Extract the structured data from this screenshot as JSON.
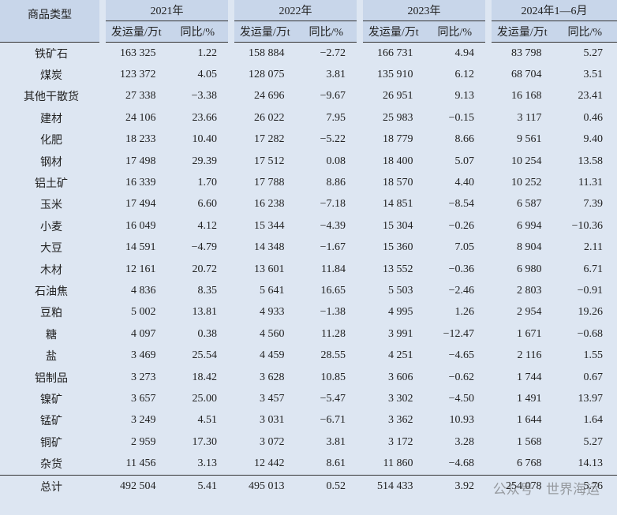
{
  "table": {
    "header": {
      "name": "商品类型",
      "years": [
        "2021年",
        "2022年",
        "2023年",
        "2024年1—6月"
      ],
      "sub": [
        "发运量/万t",
        "同比/%"
      ]
    },
    "rows": [
      [
        "铁矿石",
        "163 325",
        "1.22",
        "158 884",
        "−2.72",
        "166 731",
        "4.94",
        "83 798",
        "5.27"
      ],
      [
        "煤炭",
        "123 372",
        "4.05",
        "128 075",
        "3.81",
        "135 910",
        "6.12",
        "68 704",
        "3.51"
      ],
      [
        "其他干散货",
        "27 338",
        "−3.38",
        "24 696",
        "−9.67",
        "26 951",
        "9.13",
        "16 168",
        "23.41"
      ],
      [
        "建材",
        "24 106",
        "23.66",
        "26 022",
        "7.95",
        "25 983",
        "−0.15",
        "3 117",
        "0.46"
      ],
      [
        "化肥",
        "18 233",
        "10.40",
        "17 282",
        "−5.22",
        "18 779",
        "8.66",
        "9 561",
        "9.40"
      ],
      [
        "钢材",
        "17 498",
        "29.39",
        "17 512",
        "0.08",
        "18 400",
        "5.07",
        "10 254",
        "13.58"
      ],
      [
        "铝土矿",
        "16 339",
        "1.70",
        "17 788",
        "8.86",
        "18 570",
        "4.40",
        "10 252",
        "11.31"
      ],
      [
        "玉米",
        "17 494",
        "6.60",
        "16 238",
        "−7.18",
        "14 851",
        "−8.54",
        "6 587",
        "7.39"
      ],
      [
        "小麦",
        "16 049",
        "4.12",
        "15 344",
        "−4.39",
        "15 304",
        "−0.26",
        "6 994",
        "−10.36"
      ],
      [
        "大豆",
        "14 591",
        "−4.79",
        "14 348",
        "−1.67",
        "15 360",
        "7.05",
        "8 904",
        "2.11"
      ],
      [
        "木材",
        "12 161",
        "20.72",
        "13 601",
        "11.84",
        "13 552",
        "−0.36",
        "6 980",
        "6.71"
      ],
      [
        "石油焦",
        "4 836",
        "8.35",
        "5 641",
        "16.65",
        "5 503",
        "−2.46",
        "2 803",
        "−0.91"
      ],
      [
        "豆粕",
        "5 002",
        "13.81",
        "4 933",
        "−1.38",
        "4 995",
        "1.26",
        "2 954",
        "19.26"
      ],
      [
        "糖",
        "4 097",
        "0.38",
        "4 560",
        "11.28",
        "3 991",
        "−12.47",
        "1 671",
        "−0.68"
      ],
      [
        "盐",
        "3 469",
        "25.54",
        "4 459",
        "28.55",
        "4 251",
        "−4.65",
        "2 116",
        "1.55"
      ],
      [
        "铝制品",
        "3 273",
        "18.42",
        "3 628",
        "10.85",
        "3 606",
        "−0.62",
        "1 744",
        "0.67"
      ],
      [
        "镍矿",
        "3 657",
        "25.00",
        "3 457",
        "−5.47",
        "3 302",
        "−4.50",
        "1 491",
        "13.97"
      ],
      [
        "锰矿",
        "3 249",
        "4.51",
        "3 031",
        "−6.71",
        "3 362",
        "10.93",
        "1 644",
        "1.64"
      ],
      [
        "铜矿",
        "2 959",
        "17.30",
        "3 072",
        "3.81",
        "3 172",
        "3.28",
        "1 568",
        "5.27"
      ],
      [
        "杂货",
        "11 456",
        "3.13",
        "12 442",
        "8.61",
        "11 860",
        "−4.68",
        "6 768",
        "14.13"
      ],
      [
        "总计",
        "492 504",
        "5.41",
        "495 013",
        "0.52",
        "514 433",
        "3.92",
        "254 078",
        "5.76"
      ]
    ]
  },
  "watermark": "公众号 · 世界海运"
}
